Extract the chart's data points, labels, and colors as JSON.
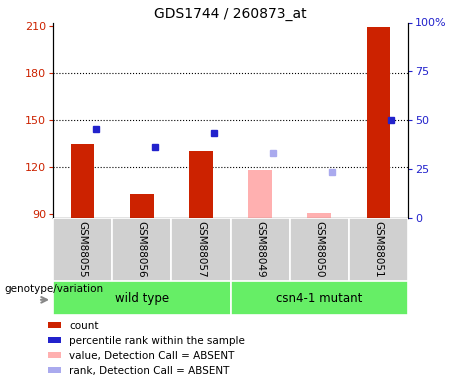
{
  "title": "GDS1744 / 260873_at",
  "samples": [
    "GSM88055",
    "GSM88056",
    "GSM88057",
    "GSM88049",
    "GSM88050",
    "GSM88051"
  ],
  "bar_values": [
    135,
    103,
    130,
    118,
    91,
    209
  ],
  "bar_colors": [
    "#cc2200",
    "#cc2200",
    "#cc2200",
    "#ffb0b0",
    "#ffb0b0",
    "#cc2200"
  ],
  "rank_values": [
    144,
    133,
    142,
    129,
    117,
    150
  ],
  "rank_colors": [
    "#2222cc",
    "#2222cc",
    "#2222cc",
    "#aaaaee",
    "#aaaaee",
    "#2222cc"
  ],
  "detection_absent": [
    false,
    false,
    false,
    true,
    true,
    false
  ],
  "ylim_left": [
    88,
    212
  ],
  "ylim_right": [
    0,
    100
  ],
  "yticks_left": [
    90,
    120,
    150,
    180,
    210
  ],
  "yticks_right": [
    0,
    25,
    50,
    75,
    100
  ],
  "ytick_labels_right": [
    "0",
    "25",
    "50",
    "75",
    "100%"
  ],
  "hlines": [
    120,
    150,
    180
  ],
  "ylabel_left_color": "#cc2200",
  "ylabel_right_color": "#2222cc",
  "genotype_label": "genotype/variation",
  "group_names": [
    "wild type",
    "csn4-1 mutant"
  ],
  "group_ranges": [
    [
      0,
      3
    ],
    [
      3,
      6
    ]
  ],
  "group_color": "#66ee66",
  "sample_bg_color": "#d0d0d0",
  "legend_items": [
    {
      "label": "count",
      "color": "#cc2200"
    },
    {
      "label": "percentile rank within the sample",
      "color": "#2222cc"
    },
    {
      "label": "value, Detection Call = ABSENT",
      "color": "#ffb0b0"
    },
    {
      "label": "rank, Detection Call = ABSENT",
      "color": "#aaaaee"
    }
  ]
}
